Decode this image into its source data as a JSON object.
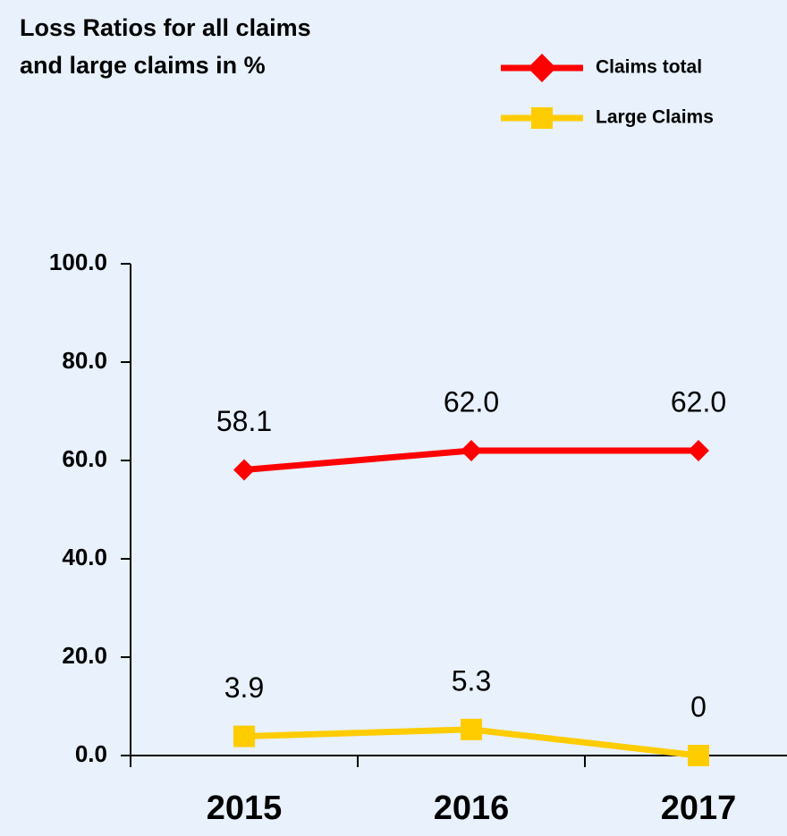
{
  "chart_data": {
    "type": "line",
    "title": [
      "Loss Ratios for all claims",
      "and large claims in %"
    ],
    "categories": [
      "2015",
      "2016",
      "2017"
    ],
    "series": [
      {
        "name": "Claims total",
        "color": "#ff0000",
        "marker": "diamond",
        "values": [
          58.1,
          62.0,
          62.0
        ],
        "value_labels": [
          "58.1",
          "62.0",
          "62.0"
        ]
      },
      {
        "name": "Large Claims",
        "color": "#ffcc00",
        "marker": "square",
        "values": [
          3.9,
          5.3,
          0
        ],
        "value_labels": [
          "3.9",
          "5.3",
          "0"
        ]
      }
    ],
    "ylim": [
      0,
      100
    ],
    "yticks": [
      {
        "value": 0,
        "label": "0.0"
      },
      {
        "value": 20,
        "label": "20.0"
      },
      {
        "value": 40,
        "label": "40.0"
      },
      {
        "value": 60,
        "label": "60.0"
      },
      {
        "value": 80,
        "label": "80.0"
      },
      {
        "value": 100,
        "label": "100.0"
      }
    ],
    "legend": "top-right",
    "grid": false
  }
}
